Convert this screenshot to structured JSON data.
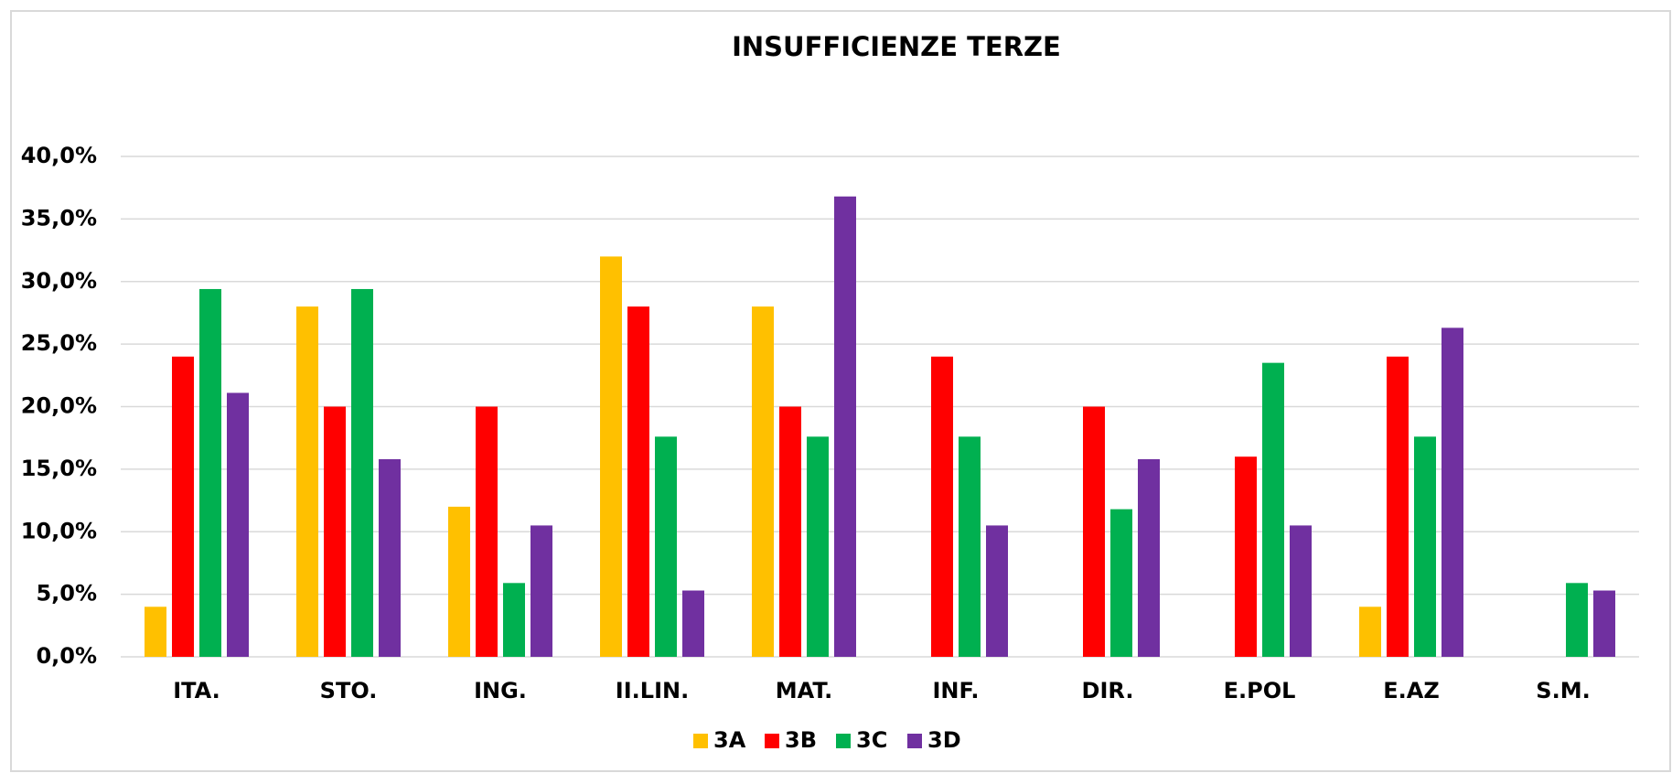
{
  "chart_data": {
    "type": "bar",
    "title": "INSUFFICIENZE TERZE",
    "categories": [
      "ITA.",
      "STO.",
      "ING.",
      "II.LIN.",
      "MAT.",
      "INF.",
      "DIR.",
      "E.POL",
      "E.AZ",
      "S.M."
    ],
    "series": [
      {
        "name": "3A",
        "color": "#FFC000",
        "values": [
          4,
          28,
          12,
          32,
          28,
          0,
          0,
          0,
          4,
          0
        ]
      },
      {
        "name": "3B",
        "color": "#FF0000",
        "values": [
          24,
          20,
          20,
          28,
          20,
          24,
          20,
          16,
          24,
          0
        ]
      },
      {
        "name": "3C",
        "color": "#00B050",
        "values": [
          29.4,
          29.4,
          5.9,
          17.6,
          17.6,
          17.6,
          11.8,
          23.5,
          17.6,
          5.9
        ]
      },
      {
        "name": "3D",
        "color": "#7030A0",
        "values": [
          21.1,
          15.8,
          10.5,
          5.3,
          36.8,
          10.5,
          15.8,
          10.5,
          26.3,
          5.3
        ]
      }
    ],
    "ylim": [
      0,
      40
    ],
    "yticks": [
      {
        "value": 0,
        "label": "0,0%"
      },
      {
        "value": 5,
        "label": "5,0%"
      },
      {
        "value": 10,
        "label": "10,0%"
      },
      {
        "value": 15,
        "label": "15,0%"
      },
      {
        "value": 20,
        "label": "20,0%"
      },
      {
        "value": 25,
        "label": "25,0%"
      },
      {
        "value": 30,
        "label": "30,0%"
      },
      {
        "value": 35,
        "label": "35,0%"
      },
      {
        "value": 40,
        "label": "40,0%"
      }
    ],
    "grid": true,
    "legend": "bottom"
  }
}
